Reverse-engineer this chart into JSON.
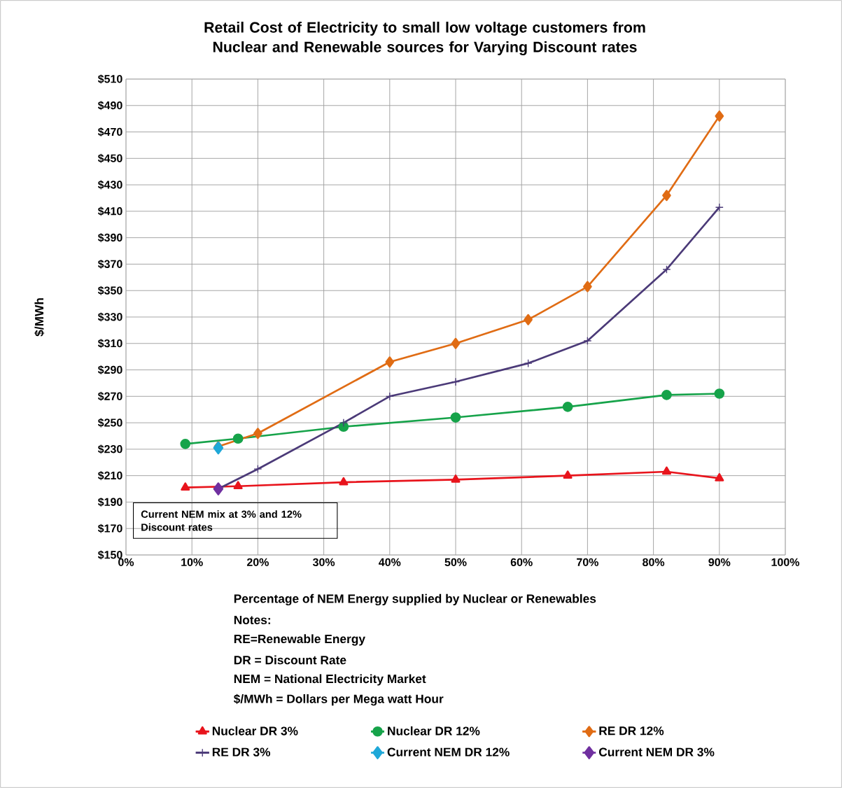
{
  "chart_data": {
    "type": "line",
    "title": "Retail Cost of Electricity to small low voltage customers from Nuclear and Renewable sources for Varying Discount rates",
    "xlabel": "Percentage of NEM Energy supplied by Nuclear or Renewables",
    "ylabel": "$/MWh",
    "xlim": [
      0,
      100
    ],
    "xticks": [
      {
        "value": 0,
        "label": "0%"
      },
      {
        "value": 10,
        "label": "10%"
      },
      {
        "value": 20,
        "label": "20%"
      },
      {
        "value": 30,
        "label": "30%"
      },
      {
        "value": 40,
        "label": "40%"
      },
      {
        "value": 50,
        "label": "50%"
      },
      {
        "value": 60,
        "label": "60%"
      },
      {
        "value": 70,
        "label": "70%"
      },
      {
        "value": 80,
        "label": "80%"
      },
      {
        "value": 90,
        "label": "90%"
      },
      {
        "value": 100,
        "label": "100%"
      }
    ],
    "ylim": [
      150,
      510
    ],
    "yticks": [
      {
        "value": 150,
        "label": "$150"
      },
      {
        "value": 170,
        "label": "$170"
      },
      {
        "value": 190,
        "label": "$190"
      },
      {
        "value": 210,
        "label": "$210"
      },
      {
        "value": 230,
        "label": "$230"
      },
      {
        "value": 250,
        "label": "$250"
      },
      {
        "value": 270,
        "label": "$270"
      },
      {
        "value": 290,
        "label": "$290"
      },
      {
        "value": 310,
        "label": "$310"
      },
      {
        "value": 330,
        "label": "$330"
      },
      {
        "value": 350,
        "label": "$350"
      },
      {
        "value": 370,
        "label": "$370"
      },
      {
        "value": 390,
        "label": "$390"
      },
      {
        "value": 410,
        "label": "$410"
      },
      {
        "value": 430,
        "label": "$430"
      },
      {
        "value": 450,
        "label": "$450"
      },
      {
        "value": 470,
        "label": "$470"
      },
      {
        "value": 490,
        "label": "$490"
      },
      {
        "value": 510,
        "label": "$510"
      }
    ],
    "grid": true,
    "legend": "bottom",
    "series": [
      {
        "name": "Nuclear DR 3%",
        "color": "#e8141c",
        "marker": "triangle",
        "x": [
          9,
          17,
          33,
          50,
          67,
          82,
          90
        ],
        "values": [
          201,
          202,
          205,
          207,
          210,
          213,
          208
        ]
      },
      {
        "name": "Nuclear DR 12%",
        "color": "#16a34a",
        "marker": "circle",
        "x": [
          9,
          17,
          33,
          50,
          67,
          82,
          90
        ],
        "values": [
          234,
          238,
          247,
          254,
          262,
          271,
          272
        ]
      },
      {
        "name": "RE DR 12%",
        "color": "#e06c14",
        "marker": "diamond",
        "x": [
          14,
          20,
          40,
          50,
          61,
          70,
          82,
          90
        ],
        "values": [
          232,
          242,
          296,
          310,
          328,
          353,
          422,
          482
        ]
      },
      {
        "name": "RE DR 3%",
        "color": "#4b3a78",
        "marker": "cross",
        "x": [
          14,
          20,
          33,
          40,
          50,
          61,
          70,
          82,
          90
        ],
        "values": [
          200,
          215,
          250,
          270,
          281,
          295,
          312,
          366,
          413
        ]
      },
      {
        "name": "Current NEM DR 12%",
        "type": "scatter",
        "color": "#1fa8d8",
        "marker": "diamond",
        "x": [
          14
        ],
        "values": [
          231
        ]
      },
      {
        "name": "Current NEM DR 3%",
        "type": "scatter",
        "color": "#7030a0",
        "marker": "diamond",
        "x": [
          14
        ],
        "values": [
          200
        ]
      }
    ],
    "annotations": [
      "Current NEM mix at 3% and 12% Discount rates",
      "Notes:",
      "RE=Renewable Energy",
      "DR = Discount Rate",
      "NEM = National Electricity Market",
      "$/MWh = Dollars per Mega watt Hour"
    ]
  }
}
